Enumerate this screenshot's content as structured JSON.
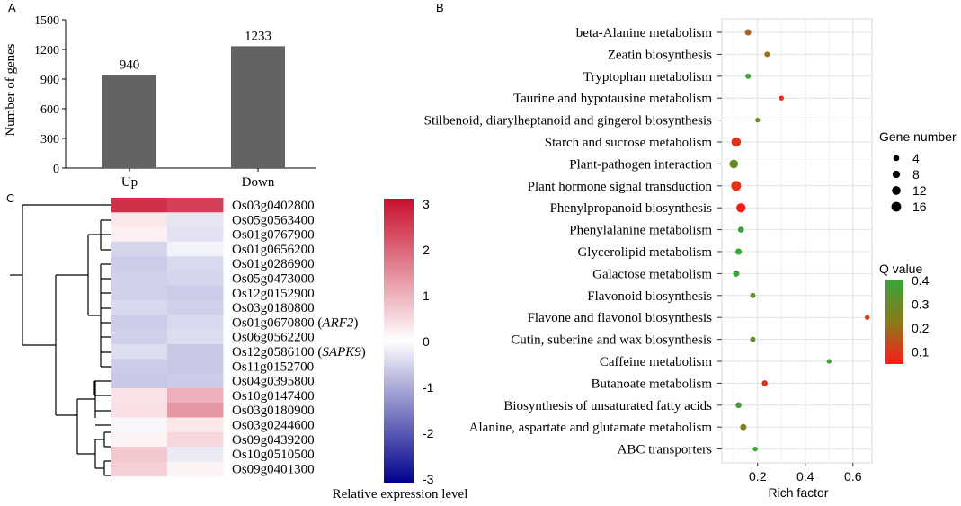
{
  "panels": {
    "a": {
      "letter": "A",
      "chart_data": {
        "type": "bar",
        "categories": [
          "Up",
          "Down"
        ],
        "values": [
          940,
          1233
        ],
        "value_labels": [
          "940",
          "1233"
        ],
        "ylabel": "Number of genes",
        "ylim": [
          0,
          1500
        ],
        "yticks": [
          "0",
          "300",
          "600",
          "900",
          "1200",
          "1500"
        ],
        "bar_color": "#636363"
      }
    },
    "b": {
      "letter": "B",
      "chart_data": {
        "type": "scatter",
        "xlabel": "Rich factor",
        "xlim": [
          0.05,
          0.68
        ],
        "xticks": [
          "0.2",
          "0.4",
          "0.6"
        ],
        "grid": true,
        "pathways": [
          {
            "label": "beta-Alanine metabolism",
            "rich": 0.16,
            "genes": 5,
            "q": 0.18
          },
          {
            "label": "Zeatin biosynthesis",
            "rich": 0.24,
            "genes": 3,
            "q": 0.2
          },
          {
            "label": "Tryptophan metabolism",
            "rich": 0.16,
            "genes": 3,
            "q": 0.4
          },
          {
            "label": "Taurine and hypotausine metabolism",
            "rich": 0.3,
            "genes": 2,
            "q": 0.08
          },
          {
            "label": "Stilbenoid, diarylheptanoid and gingerol biosynthesis",
            "rich": 0.2,
            "genes": 2,
            "q": 0.3
          },
          {
            "label": "Starch and sucrose metabolism",
            "rich": 0.11,
            "genes": 15,
            "q": 0.1
          },
          {
            "label": "Plant-pathogen interaction",
            "rich": 0.1,
            "genes": 12,
            "q": 0.3
          },
          {
            "label": "Plant hormone signal transduction",
            "rich": 0.11,
            "genes": 17,
            "q": 0.1
          },
          {
            "label": "Phenylpropanoid biosynthesis",
            "rich": 0.13,
            "genes": 14,
            "q": 0.05
          },
          {
            "label": "Phenylalanine metabolism",
            "rich": 0.13,
            "genes": 4,
            "q": 0.4
          },
          {
            "label": "Glycerolipid metabolism",
            "rich": 0.12,
            "genes": 5,
            "q": 0.4
          },
          {
            "label": "Galactose metabolism",
            "rich": 0.11,
            "genes": 5,
            "q": 0.4
          },
          {
            "label": "Flavonoid biosynthesis",
            "rich": 0.18,
            "genes": 3,
            "q": 0.32
          },
          {
            "label": "Flavone and flavonol biosynthesis",
            "rich": 0.66,
            "genes": 2,
            "q": 0.12
          },
          {
            "label": "Cutin, suberine and wax biosynthesis",
            "rich": 0.18,
            "genes": 3,
            "q": 0.32
          },
          {
            "label": "Caffeine metabolism",
            "rich": 0.5,
            "genes": 2,
            "q": 0.4
          },
          {
            "label": "Butanoate metabolism",
            "rich": 0.23,
            "genes": 4,
            "q": 0.1
          },
          {
            "label": "Biosynthesis of unsaturated fatty acids",
            "rich": 0.12,
            "genes": 4,
            "q": 0.38
          },
          {
            "label": "Alanine, aspartate and glutamate metabolism",
            "rich": 0.14,
            "genes": 5,
            "q": 0.25
          },
          {
            "label": "ABC transporters",
            "rich": 0.19,
            "genes": 2,
            "q": 0.4
          }
        ],
        "size_legend": {
          "title": "Gene number",
          "values": [
            4,
            8,
            12,
            16
          ],
          "labels": [
            "4",
            "8",
            "12",
            "16"
          ]
        },
        "color_legend": {
          "title": "Q value",
          "range": [
            0.05,
            0.4
          ],
          "ticks": [
            "0.4",
            "0.3",
            "0.2",
            "0.1"
          ],
          "tick_values": [
            0.4,
            0.3,
            0.2,
            0.1
          ],
          "low_color": "#ff1a1a",
          "mid_color": "#8a7a1a",
          "high_color": "#3aa33a"
        }
      }
    },
    "c": {
      "letter": "C",
      "chart_data": {
        "type": "heatmap",
        "genes": [
          {
            "id": "Os03g0402800",
            "note": "",
            "values": [
              2.6,
              2.4
            ]
          },
          {
            "id": "Os05g0563400",
            "note": "",
            "values": [
              0.3,
              -0.3
            ]
          },
          {
            "id": "Os01g0767900",
            "note": "",
            "values": [
              0.2,
              -0.35
            ]
          },
          {
            "id": "Os01g0656200",
            "note": "",
            "values": [
              -0.5,
              -0.15
            ]
          },
          {
            "id": "Os01g0286900",
            "note": "",
            "values": [
              -0.6,
              -0.45
            ]
          },
          {
            "id": "Os05g0473000",
            "note": "",
            "values": [
              -0.55,
              -0.5
            ]
          },
          {
            "id": "Os12g0152900",
            "note": "",
            "values": [
              -0.55,
              -0.6
            ]
          },
          {
            "id": "Os03g0180800",
            "note": "",
            "values": [
              -0.45,
              -0.55
            ]
          },
          {
            "id": "Os01g0670800",
            "note": "ARF2",
            "values": [
              -0.6,
              -0.45
            ]
          },
          {
            "id": "Os06g0562200",
            "note": "",
            "values": [
              -0.55,
              -0.4
            ]
          },
          {
            "id": "Os12g0586100",
            "note": "SAPK9",
            "values": [
              -0.4,
              -0.65
            ]
          },
          {
            "id": "Os11g0152700",
            "note": "",
            "values": [
              -0.6,
              -0.65
            ]
          },
          {
            "id": "Os04g0395800",
            "note": "",
            "values": [
              -0.65,
              -0.6
            ]
          },
          {
            "id": "Os10g0147400",
            "note": "",
            "values": [
              0.35,
              1.0
            ]
          },
          {
            "id": "Os03g0180900",
            "note": "",
            "values": [
              0.4,
              1.3
            ]
          },
          {
            "id": "Os03g0244600",
            "note": "",
            "values": [
              -0.1,
              0.3
            ]
          },
          {
            "id": "Os09g0439200",
            "note": "",
            "values": [
              0.15,
              0.5
            ]
          },
          {
            "id": "Os10g0510500",
            "note": "",
            "values": [
              0.7,
              -0.25
            ]
          },
          {
            "id": "Os09g0401300",
            "note": "",
            "values": [
              0.6,
              0.15
            ]
          }
        ],
        "colorbar": {
          "title": "Relative expression level",
          "range": [
            -3,
            3
          ],
          "ticks": [
            "3",
            "2",
            "1",
            "0",
            "-1",
            "-2",
            "-3"
          ],
          "tick_values": [
            3,
            2,
            1,
            0,
            -1,
            -2,
            -3
          ],
          "low_color": "#00008b",
          "mid_color": "#ffffff",
          "high_color": "#c8102e"
        }
      }
    }
  }
}
